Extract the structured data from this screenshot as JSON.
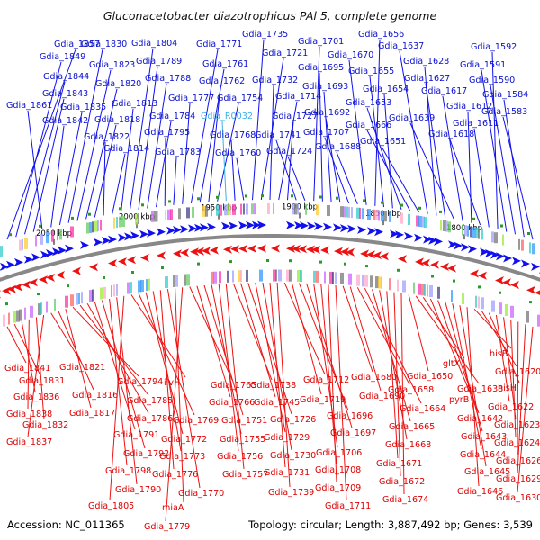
{
  "title": "Gluconacetobacter diazotrophicus PAl 5, complete genome",
  "accession": "Accession: NC_011365",
  "summary": "Topology: circular; Length: 3,887,492 bp; Genes: 3,539",
  "colors": {
    "forward": "#1010ee",
    "reverse": "#ee1111",
    "rna_label": "#3ab0e8",
    "backbone": "#888888"
  },
  "scale_ticks": [
    "2050 kbp",
    "2000 kbp",
    "1950 kbp",
    "1900 kbp",
    "1850 kbp",
    "1800 kbp"
  ],
  "top_genes": [
    {
      "label": "Gdia_1857"
    },
    {
      "label": "Gdia_1849"
    },
    {
      "label": "Gdia_1844"
    },
    {
      "label": "Gdia_1843"
    },
    {
      "label": "Gdia_1861"
    },
    {
      "label": "Gdia_1842"
    },
    {
      "label": "Gdia_1835"
    },
    {
      "label": "Gdia_1830"
    },
    {
      "label": "Gdia_1823"
    },
    {
      "label": "Gdia_1820"
    },
    {
      "label": "Gdia_1818"
    },
    {
      "label": "Gdia_1822"
    },
    {
      "label": "Gdia_1814"
    },
    {
      "label": "Gdia_1813"
    },
    {
      "label": "Gdia_1804"
    },
    {
      "label": "Gdia_1789"
    },
    {
      "label": "Gdia_1788"
    },
    {
      "label": "Gdia_1784"
    },
    {
      "label": "Gdia_1795"
    },
    {
      "label": "Gdia_1783"
    },
    {
      "label": "Gdia_1777"
    },
    {
      "label": "Gdia_1771"
    },
    {
      "label": "Gdia_1761"
    },
    {
      "label": "Gdia_1762"
    },
    {
      "label": "Gdia_1754"
    },
    {
      "label": "Gdia_R0032",
      "rna": true
    },
    {
      "label": "Gdia_1768"
    },
    {
      "label": "Gdia_1760"
    },
    {
      "label": "Gdia_1735"
    },
    {
      "label": "Gdia_1721"
    },
    {
      "label": "Gdia_1732"
    },
    {
      "label": "Gdia_1714"
    },
    {
      "label": "Gdia_1727"
    },
    {
      "label": "Gdia_1741"
    },
    {
      "label": "Gdia_1724"
    },
    {
      "label": "Gdia_1701"
    },
    {
      "label": "Gdia_1695"
    },
    {
      "label": "Gdia_1693"
    },
    {
      "label": "Gdia_1692"
    },
    {
      "label": "Gdia_1707"
    },
    {
      "label": "Gdia_1688"
    },
    {
      "label": "Gdia_1670"
    },
    {
      "label": "Gdia_1656"
    },
    {
      "label": "Gdia_1655"
    },
    {
      "label": "Gdia_1654"
    },
    {
      "label": "Gdia_1653"
    },
    {
      "label": "Gdia_1666"
    },
    {
      "label": "Gdia_1651"
    },
    {
      "label": "Gdia_1637"
    },
    {
      "label": "Gdia_1628"
    },
    {
      "label": "Gdia_1627"
    },
    {
      "label": "Gdia_1639"
    },
    {
      "label": "Gdia_1617"
    },
    {
      "label": "Gdia_1612"
    },
    {
      "label": "Gdia_1618"
    },
    {
      "label": "Gdia_1611"
    },
    {
      "label": "Gdia_1592"
    },
    {
      "label": "Gdia_1591"
    },
    {
      "label": "Gdia_1590"
    },
    {
      "label": "Gdia_1584"
    },
    {
      "label": "Gdia_1583"
    }
  ],
  "bottom_genes": [
    {
      "label": "Gdia_1841"
    },
    {
      "label": "Gdia_1831"
    },
    {
      "label": "Gdia_1836"
    },
    {
      "label": "Gdia_1838"
    },
    {
      "label": "Gdia_1832"
    },
    {
      "label": "Gdia_1837"
    },
    {
      "label": "Gdia_1821"
    },
    {
      "label": "Gdia_1816"
    },
    {
      "label": "Gdia_1817"
    },
    {
      "label": "Gdia_1794"
    },
    {
      "label": "Gdia_1785"
    },
    {
      "label": "Gdia_1786"
    },
    {
      "label": "Gdia_1791"
    },
    {
      "label": "Gdia_1792"
    },
    {
      "label": "Gdia_1798"
    },
    {
      "label": "Gdia_1790"
    },
    {
      "label": "Gdia_1805"
    },
    {
      "label": "ilvH"
    },
    {
      "label": "Gdia_1769"
    },
    {
      "label": "Gdia_1772"
    },
    {
      "label": "Gdia_1773"
    },
    {
      "label": "Gdia_1776"
    },
    {
      "label": "Gdia_1770"
    },
    {
      "label": "miaA"
    },
    {
      "label": "Gdia_1779"
    },
    {
      "label": "Gdia_1765"
    },
    {
      "label": "Gdia_1766"
    },
    {
      "label": "Gdia_1751"
    },
    {
      "label": "Gdia_1755"
    },
    {
      "label": "Gdia_1756"
    },
    {
      "label": "Gdia_1757"
    },
    {
      "label": "Gdia_1738"
    },
    {
      "label": "Gdia_1745"
    },
    {
      "label": "Gdia_1726"
    },
    {
      "label": "Gdia_1729"
    },
    {
      "label": "Gdia_1730"
    },
    {
      "label": "Gdia_1731"
    },
    {
      "label": "Gdia_1739"
    },
    {
      "label": "Gdia_1712"
    },
    {
      "label": "Gdia_1719"
    },
    {
      "label": "Gdia_1696"
    },
    {
      "label": "Gdia_1697"
    },
    {
      "label": "Gdia_1706"
    },
    {
      "label": "Gdia_1708"
    },
    {
      "label": "Gdia_1709"
    },
    {
      "label": "Gdia_1711"
    },
    {
      "label": "Gdia_1680"
    },
    {
      "label": "Gdia_1690"
    },
    {
      "label": "Gdia_1658"
    },
    {
      "label": "Gdia_1664"
    },
    {
      "label": "Gdia_1665"
    },
    {
      "label": "Gdia_1668"
    },
    {
      "label": "Gdia_1671"
    },
    {
      "label": "Gdia_1672"
    },
    {
      "label": "Gdia_1674"
    },
    {
      "label": "Gdia_1650"
    },
    {
      "label": "Gdia_1638"
    },
    {
      "label": "gltX"
    },
    {
      "label": "pyrB"
    },
    {
      "label": "Gdia_1642"
    },
    {
      "label": "Gdia_1643"
    },
    {
      "label": "Gdia_1644"
    },
    {
      "label": "Gdia_1645"
    },
    {
      "label": "Gdia_1646"
    },
    {
      "label": "hisB"
    },
    {
      "label": "Gdia_1620"
    },
    {
      "label": "hisH"
    },
    {
      "label": "Gdia_1622"
    },
    {
      "label": "Gdia_1623"
    },
    {
      "label": "Gdia_1624"
    },
    {
      "label": "Gdia_1626"
    },
    {
      "label": "Gdia_1629"
    },
    {
      "label": "Gdia_1630"
    }
  ]
}
